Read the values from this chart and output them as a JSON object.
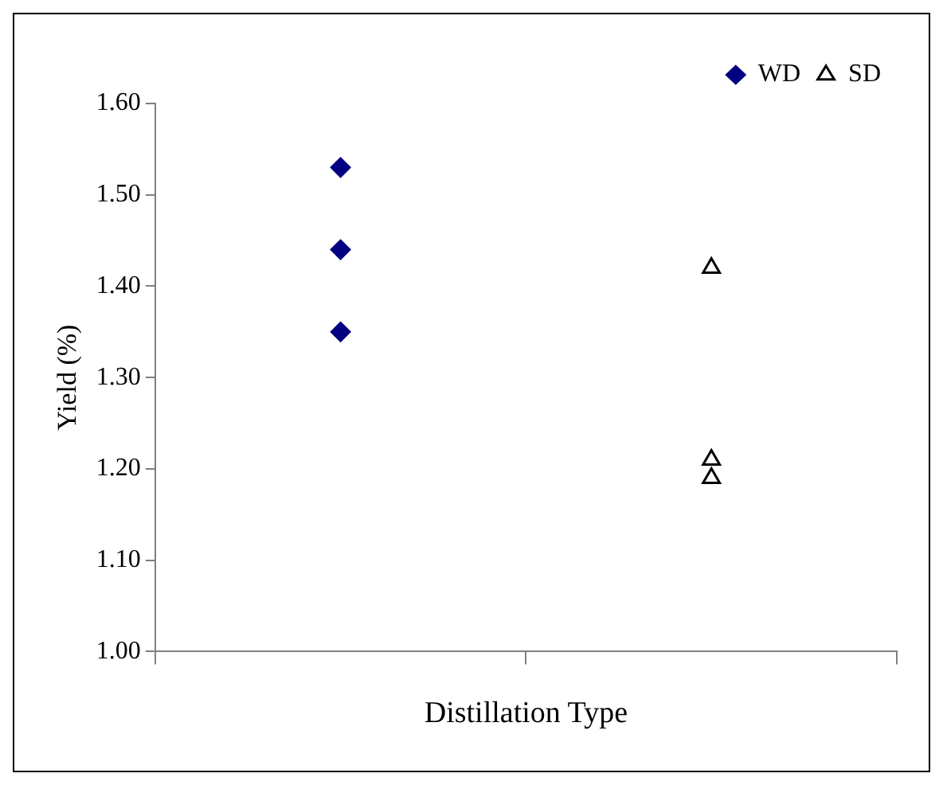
{
  "chart_data": {
    "type": "scatter",
    "xlabel": "Distillation Type",
    "ylabel": "Yield (%)",
    "categories": [
      null,
      null
    ],
    "ylim": [
      1.0,
      1.6
    ],
    "yticks": [
      {
        "value": 1.0,
        "label": "1.00"
      },
      {
        "value": 1.1,
        "label": "1.10"
      },
      {
        "value": 1.2,
        "label": "1.20"
      },
      {
        "value": 1.3,
        "label": "1.30"
      },
      {
        "value": 1.4,
        "label": "1.40"
      },
      {
        "value": 1.5,
        "label": "1.50"
      },
      {
        "value": 1.6,
        "label": "1.60"
      }
    ],
    "tick_labels": "y",
    "grid": false,
    "legend": "top right",
    "series": [
      {
        "name": "WD",
        "color": "#000080",
        "marker": "diamond",
        "values": [
          1.53,
          null
        ]
      },
      {
        "color": "#000080",
        "marker": "diamond",
        "values": [
          1.44,
          null
        ]
      },
      {
        "color": "#000080",
        "marker": "diamond",
        "values": [
          1.35,
          null
        ]
      },
      {
        "name": "SD",
        "color": "#000000",
        "marker": "triangle",
        "values": [
          null,
          1.42
        ]
      },
      {
        "color": "#000000",
        "marker": "triangle",
        "values": [
          null,
          1.21
        ]
      },
      {
        "color": "#000000",
        "marker": "triangle",
        "values": [
          null,
          1.19
        ]
      }
    ]
  }
}
